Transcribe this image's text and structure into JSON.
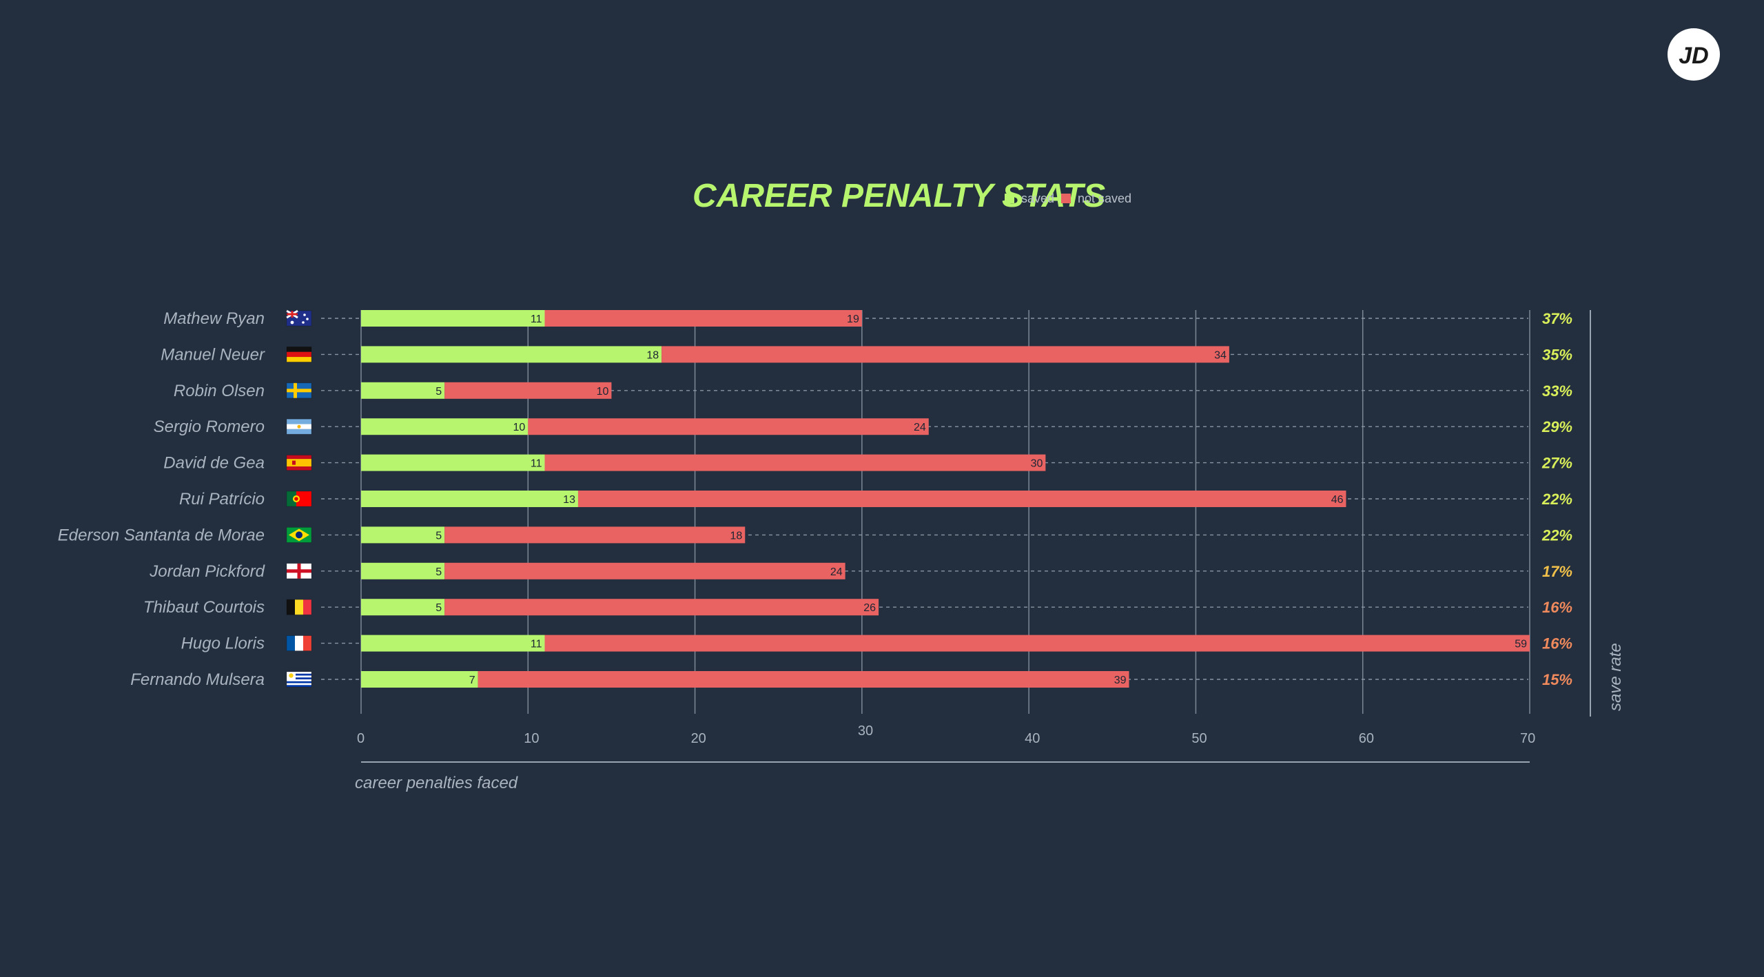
{
  "brand": {
    "logo_text": "JD"
  },
  "colors": {
    "background": "#232f3e",
    "saved": "#b8f56e",
    "not_saved": "#ea6363",
    "grid": "#7d8896",
    "text": "#aab4c0",
    "rate_high": "#d9ef5a",
    "rate_mid": "#f0c04a",
    "rate_low": "#f08a5d"
  },
  "chart_data": {
    "type": "bar",
    "orientation": "horizontal",
    "stacked": true,
    "title": "CAREER PENALTY STATS",
    "legend": [
      "saved",
      "not saved"
    ],
    "legend_position": "top",
    "xlabel": "career penalties faced",
    "rate_label": "save rate",
    "xlim": [
      0,
      70
    ],
    "xticks": [
      0,
      10,
      20,
      30,
      40,
      50,
      60,
      70
    ],
    "categories": [
      "Mathew Ryan",
      "Manuel Neuer",
      "Robin Olsen",
      "Sergio Romero",
      "David de Gea",
      "Rui Patrício",
      "Ederson Santanta de Morae",
      "Jordan Pickford",
      "Thibaut Courtois",
      "Hugo Lloris",
      "Fernando Mulsera"
    ],
    "countries": [
      "australia",
      "germany",
      "sweden",
      "argentina",
      "spain",
      "portugal",
      "brazil",
      "england",
      "belgium",
      "france",
      "uruguay"
    ],
    "series": [
      {
        "name": "saved",
        "values": [
          11,
          18,
          5,
          10,
          11,
          13,
          5,
          5,
          5,
          11,
          7
        ]
      },
      {
        "name": "not saved",
        "values": [
          19,
          34,
          10,
          24,
          30,
          46,
          18,
          24,
          26,
          59,
          39
        ]
      }
    ],
    "save_rate": [
      "37%",
      "35%",
      "33%",
      "29%",
      "27%",
      "22%",
      "22%",
      "17%",
      "16%",
      "16%",
      "15%"
    ]
  }
}
